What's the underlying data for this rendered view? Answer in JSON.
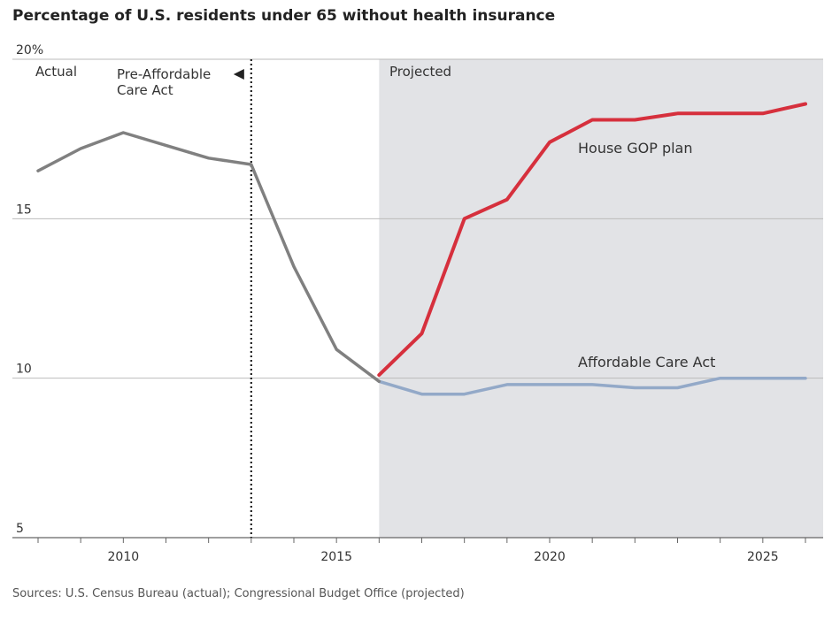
{
  "title": "Percentage of U.S. residents under 65 without health insurance",
  "source": "Sources: U.S. Census Bureau (actual); Congressional Budget Office (projected)",
  "annotations": {
    "actual": "Actual",
    "pre_aca_line1": "Pre-Affordable",
    "pre_aca_line2": "Care Act",
    "projected": "Projected"
  },
  "colors": {
    "actual": "#808080",
    "gop": "#d6303d",
    "aca": "#93a9c8",
    "projected_bg": "#e2e3e6",
    "grid": "#bbbbbb"
  },
  "chart_data": {
    "type": "line",
    "title": "Percentage of U.S. residents under 65 without health insurance",
    "xlabel": "",
    "ylabel": "",
    "xlim": [
      2007.8,
      2026.5
    ],
    "ylim": [
      5,
      20
    ],
    "y_ticks": [
      {
        "value": 20,
        "label": "20%"
      },
      {
        "value": 15,
        "label": "15"
      },
      {
        "value": 10,
        "label": "10"
      },
      {
        "value": 5,
        "label": "5"
      }
    ],
    "x_ticks": [
      {
        "value": 2010,
        "label": "2010"
      },
      {
        "value": 2015,
        "label": "2015"
      },
      {
        "value": 2020,
        "label": "2020"
      },
      {
        "value": 2025,
        "label": "2025"
      }
    ],
    "projected_start": 2016,
    "aca_marker": 2013,
    "series": [
      {
        "key": "actual",
        "name": "",
        "x": [
          2008,
          2009,
          2010,
          2011,
          2012,
          2013,
          2014,
          2015,
          2016
        ],
        "y": [
          16.5,
          17.2,
          17.7,
          17.3,
          16.9,
          16.7,
          13.5,
          10.9,
          9.9
        ]
      },
      {
        "key": "gop",
        "name": "House GOP plan",
        "x": [
          2016,
          2017,
          2018,
          2019,
          2020,
          2021,
          2022,
          2023,
          2024,
          2025,
          2026
        ],
        "y": [
          10.1,
          11.4,
          15.0,
          15.6,
          17.4,
          18.1,
          18.1,
          18.3,
          18.3,
          18.3,
          18.6
        ]
      },
      {
        "key": "aca",
        "name": "Affordable Care Act",
        "x": [
          2016,
          2017,
          2018,
          2019,
          2020,
          2021,
          2022,
          2023,
          2024,
          2025,
          2026
        ],
        "y": [
          9.9,
          9.5,
          9.5,
          9.8,
          9.8,
          9.8,
          9.7,
          9.7,
          10.0,
          10.0,
          10.0
        ]
      }
    ]
  }
}
